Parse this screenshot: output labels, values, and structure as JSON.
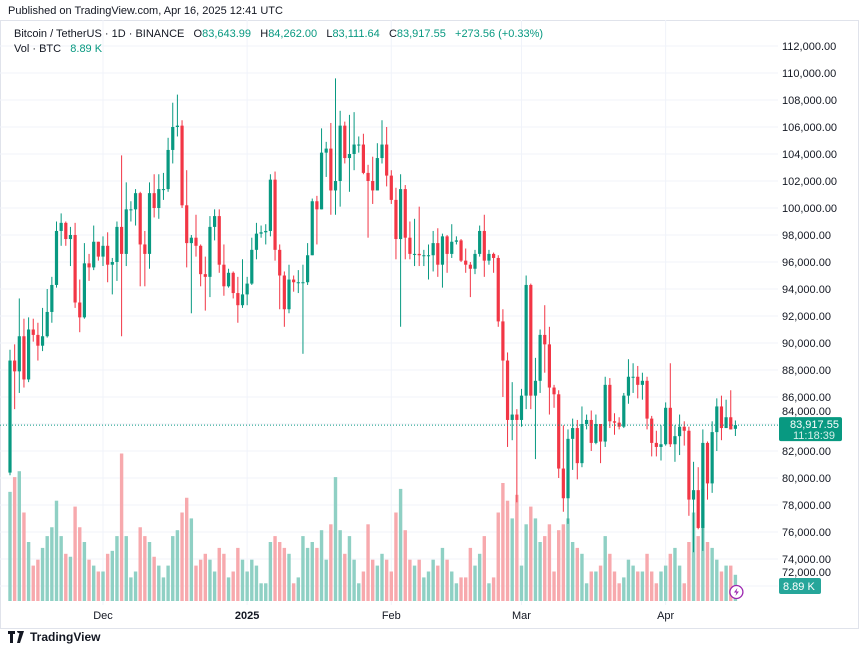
{
  "published": "Published on TradingView.com, Apr 16, 2025 12:41 UTC",
  "legend": {
    "symbol": "Bitcoin / TetherUS · 1D · BINANCE",
    "o_label": "O",
    "o": "83,643.99",
    "h_label": "H",
    "h": "84,262.00",
    "l_label": "L",
    "l": "83,111.64",
    "c_label": "C",
    "c": "83,917.55",
    "change": "+273.56 (+0.33%)",
    "vol_label": "Vol · BTC",
    "vol": "8.89 K"
  },
  "footer": {
    "brand": "TradingView",
    "logo_icon": "tradingview-logo-icon"
  },
  "chart_data": {
    "type": "candlestick",
    "colors": {
      "up": "#089981",
      "down": "#F23645",
      "up_volume": "#8fd0c4",
      "down_volume": "#f7a9ad",
      "last_price": "#089981",
      "bolt": "#9c27b0"
    },
    "y_ticks": [
      "112,000.00",
      "110,000.00",
      "108,000.00",
      "106,000.00",
      "104,000.00",
      "102,000.00",
      "100,000.00",
      "98,000.00",
      "96,000.00",
      "94,000.00",
      "92,000.00",
      "90,000.00",
      "88,000.00",
      "86,000.00",
      "84,000.00",
      "82,000.00",
      "80,000.00",
      "78,000.00",
      "76,000.00",
      "74,000.00",
      "72,000.00"
    ],
    "ylim": [
      71000,
      113000
    ],
    "x_ticks": [
      {
        "label": "Dec",
        "date": "2024-12-01"
      },
      {
        "label": "2025",
        "date": "2025-01-01"
      },
      {
        "label": "Feb",
        "date": "2025-02-01"
      },
      {
        "label": "Mar",
        "date": "2025-03-01"
      },
      {
        "label": "Apr",
        "date": "2025-04-01"
      }
    ],
    "last_price": {
      "value": 83917.55,
      "label": "83,917.55",
      "countdown": "11:18:39"
    },
    "last_volume_label": "8.89 K",
    "volume_unit": "K BTC",
    "columns": [
      "date",
      "open",
      "high",
      "low",
      "close",
      "volume"
    ],
    "candles": [
      [
        "2024-11-11",
        80400,
        89500,
        80200,
        88700,
        37
      ],
      [
        "2024-11-12",
        88700,
        89900,
        85100,
        87900,
        42
      ],
      [
        "2024-11-13",
        87900,
        93300,
        86300,
        90500,
        44
      ],
      [
        "2024-11-14",
        90500,
        91800,
        86700,
        87300,
        30
      ],
      [
        "2024-11-15",
        87300,
        91900,
        87100,
        91000,
        20
      ],
      [
        "2024-11-16",
        91000,
        91800,
        90100,
        90600,
        12
      ],
      [
        "2024-11-17",
        90600,
        91500,
        88700,
        89800,
        14
      ],
      [
        "2024-11-18",
        89800,
        92600,
        89400,
        90500,
        18
      ],
      [
        "2024-11-19",
        90500,
        94000,
        90400,
        92300,
        22
      ],
      [
        "2024-11-20",
        92300,
        94900,
        91500,
        94300,
        25
      ],
      [
        "2024-11-21",
        94300,
        99000,
        94100,
        98300,
        34
      ],
      [
        "2024-11-22",
        98300,
        99600,
        97200,
        98900,
        22
      ],
      [
        "2024-11-23",
        98900,
        99000,
        97200,
        97700,
        16
      ],
      [
        "2024-11-24",
        97700,
        98600,
        95700,
        98000,
        15
      ],
      [
        "2024-11-25",
        98000,
        98900,
        92600,
        93000,
        32
      ],
      [
        "2024-11-26",
        93000,
        94700,
        90800,
        91900,
        25
      ],
      [
        "2024-11-27",
        91900,
        97400,
        91800,
        95900,
        20
      ],
      [
        "2024-11-28",
        95900,
        96600,
        94600,
        95600,
        14
      ],
      [
        "2024-11-29",
        95600,
        98700,
        95400,
        97500,
        12
      ],
      [
        "2024-11-30",
        97500,
        97500,
        96100,
        96400,
        10
      ],
      [
        "2024-12-01",
        96400,
        97900,
        95700,
        97200,
        10
      ],
      [
        "2024-12-02",
        97200,
        98200,
        94500,
        95800,
        16
      ],
      [
        "2024-12-03",
        95800,
        96300,
        93600,
        96000,
        17
      ],
      [
        "2024-12-04",
        96000,
        99000,
        94600,
        98600,
        22
      ],
      [
        "2024-12-05",
        98600,
        103900,
        90500,
        96600,
        50
      ],
      [
        "2024-12-06",
        96600,
        101900,
        95700,
        99900,
        22
      ],
      [
        "2024-12-07",
        99900,
        100500,
        99000,
        99900,
        8
      ],
      [
        "2024-12-08",
        99900,
        101400,
        98700,
        101100,
        10
      ],
      [
        "2024-12-09",
        101100,
        101200,
        94200,
        97300,
        25
      ],
      [
        "2024-12-10",
        97300,
        98300,
        94200,
        96600,
        22
      ],
      [
        "2024-12-11",
        96600,
        101900,
        95500,
        101100,
        20
      ],
      [
        "2024-12-12",
        101100,
        102500,
        99300,
        100000,
        15
      ],
      [
        "2024-12-13",
        100000,
        102500,
        99200,
        101400,
        12
      ],
      [
        "2024-12-14",
        101400,
        102600,
        100600,
        101400,
        8
      ],
      [
        "2024-12-15",
        101400,
        105200,
        101200,
        104300,
        12
      ],
      [
        "2024-12-16",
        104300,
        107800,
        103300,
        106000,
        22
      ],
      [
        "2024-12-17",
        106000,
        108400,
        105300,
        106100,
        24
      ],
      [
        "2024-12-18",
        106100,
        106500,
        100000,
        100200,
        30
      ],
      [
        "2024-12-19",
        100200,
        102800,
        95600,
        97400,
        35
      ],
      [
        "2024-12-20",
        97400,
        98000,
        92200,
        97800,
        28
      ],
      [
        "2024-12-21",
        97800,
        99500,
        96400,
        97200,
        12
      ],
      [
        "2024-12-22",
        97200,
        97300,
        94200,
        95100,
        14
      ],
      [
        "2024-12-23",
        95100,
        96400,
        92400,
        94900,
        16
      ],
      [
        "2024-12-24",
        94900,
        99400,
        93400,
        98600,
        14
      ],
      [
        "2024-12-25",
        98600,
        99900,
        97600,
        99400,
        10
      ],
      [
        "2024-12-26",
        99400,
        99900,
        95200,
        95800,
        18
      ],
      [
        "2024-12-27",
        95800,
        97300,
        93500,
        94200,
        16
      ],
      [
        "2024-12-28",
        94200,
        95500,
        94100,
        95200,
        8
      ],
      [
        "2024-12-29",
        95200,
        95300,
        93300,
        93700,
        10
      ],
      [
        "2024-12-30",
        93700,
        94900,
        91500,
        92800,
        18
      ],
      [
        "2024-12-31",
        92800,
        96200,
        92600,
        93600,
        14
      ],
      [
        "2025-01-01",
        93600,
        94900,
        92800,
        94400,
        10
      ],
      [
        "2025-01-02",
        94400,
        97800,
        94300,
        96900,
        14
      ],
      [
        "2025-01-03",
        96900,
        98900,
        96200,
        98100,
        12
      ],
      [
        "2025-01-04",
        98100,
        98700,
        97800,
        98200,
        6
      ],
      [
        "2025-01-05",
        98200,
        98800,
        97300,
        98300,
        6
      ],
      [
        "2025-01-06",
        98300,
        102500,
        97900,
        102100,
        20
      ],
      [
        "2025-01-07",
        102100,
        102700,
        96100,
        96900,
        22
      ],
      [
        "2025-01-08",
        96900,
        97300,
        92500,
        95000,
        20
      ],
      [
        "2025-01-09",
        95000,
        95300,
        91200,
        92500,
        18
      ],
      [
        "2025-01-10",
        92500,
        95800,
        92200,
        94700,
        16
      ],
      [
        "2025-01-11",
        94700,
        95000,
        93800,
        94500,
        6
      ],
      [
        "2025-01-12",
        94500,
        95400,
        93700,
        94500,
        8
      ],
      [
        "2025-01-13",
        94500,
        95800,
        89200,
        94500,
        22
      ],
      [
        "2025-01-14",
        94500,
        97400,
        94300,
        96500,
        18
      ],
      [
        "2025-01-15",
        96500,
        100700,
        96500,
        100500,
        20
      ],
      [
        "2025-01-16",
        100500,
        100900,
        97300,
        99900,
        18
      ],
      [
        "2025-01-17",
        99900,
        105900,
        99900,
        104100,
        24
      ],
      [
        "2025-01-18",
        104100,
        104900,
        102300,
        104400,
        14
      ],
      [
        "2025-01-19",
        104400,
        106300,
        99500,
        101300,
        26
      ],
      [
        "2025-01-20",
        101300,
        109600,
        99500,
        102000,
        42
      ],
      [
        "2025-01-21",
        102000,
        107200,
        100100,
        106100,
        24
      ],
      [
        "2025-01-22",
        106100,
        106400,
        103300,
        103700,
        16
      ],
      [
        "2025-01-23",
        103700,
        106900,
        101200,
        104000,
        22
      ],
      [
        "2025-01-24",
        104000,
        107100,
        102800,
        104700,
        14
      ],
      [
        "2025-01-25",
        104700,
        105300,
        104100,
        104700,
        6
      ],
      [
        "2025-01-26",
        104700,
        105500,
        102500,
        102600,
        10
      ],
      [
        "2025-01-27",
        102600,
        103200,
        97800,
        102000,
        26
      ],
      [
        "2025-01-28",
        102000,
        103800,
        100300,
        101300,
        14
      ],
      [
        "2025-01-29",
        101300,
        104800,
        101300,
        103700,
        12
      ],
      [
        "2025-01-30",
        103700,
        106500,
        103300,
        104700,
        16
      ],
      [
        "2025-01-31",
        104700,
        106000,
        101600,
        102400,
        14
      ],
      [
        "2025-02-01",
        102400,
        102800,
        100300,
        100600,
        10
      ],
      [
        "2025-02-02",
        100600,
        101500,
        96200,
        97700,
        30
      ],
      [
        "2025-02-03",
        97700,
        102500,
        91200,
        101400,
        38
      ],
      [
        "2025-02-04",
        101400,
        101700,
        96200,
        97800,
        24
      ],
      [
        "2025-02-05",
        97800,
        99000,
        96200,
        96600,
        14
      ],
      [
        "2025-02-06",
        96600,
        99200,
        95700,
        96600,
        12
      ],
      [
        "2025-02-07",
        96600,
        100100,
        95700,
        96500,
        14
      ],
      [
        "2025-02-08",
        96500,
        96900,
        95700,
        96500,
        8
      ],
      [
        "2025-02-09",
        96500,
        97300,
        94700,
        96500,
        10
      ],
      [
        "2025-02-10",
        96500,
        98300,
        95300,
        97400,
        14
      ],
      [
        "2025-02-11",
        97400,
        98500,
        94900,
        95800,
        12
      ],
      [
        "2025-02-12",
        95800,
        98100,
        94100,
        97900,
        18
      ],
      [
        "2025-02-13",
        97900,
        98000,
        95200,
        96600,
        14
      ],
      [
        "2025-02-14",
        96600,
        98800,
        96300,
        97500,
        10
      ],
      [
        "2025-02-15",
        97500,
        97900,
        97300,
        97600,
        6
      ],
      [
        "2025-02-16",
        97600,
        97700,
        96000,
        96100,
        8
      ],
      [
        "2025-02-17",
        96100,
        97000,
        95200,
        95800,
        8
      ],
      [
        "2025-02-18",
        95800,
        96000,
        93400,
        95500,
        18
      ],
      [
        "2025-02-19",
        95500,
        96900,
        95100,
        96600,
        12
      ],
      [
        "2025-02-20",
        96600,
        98700,
        96400,
        98300,
        16
      ],
      [
        "2025-02-21",
        98300,
        99500,
        94900,
        96100,
        22
      ],
      [
        "2025-02-22",
        96100,
        96900,
        95800,
        96600,
        6
      ],
      [
        "2025-02-23",
        96600,
        96700,
        95200,
        96300,
        8
      ],
      [
        "2025-02-24",
        96300,
        96500,
        91200,
        91600,
        30
      ],
      [
        "2025-02-25",
        91600,
        92500,
        86000,
        88700,
        40
      ],
      [
        "2025-02-26",
        88700,
        89300,
        82300,
        84300,
        34
      ],
      [
        "2025-02-27",
        84300,
        87100,
        82800,
        84700,
        28
      ],
      [
        "2025-02-28",
        84700,
        85100,
        78200,
        84300,
        36
      ],
      [
        "2025-03-01",
        84300,
        86600,
        83800,
        86100,
        12
      ],
      [
        "2025-03-02",
        86100,
        95000,
        85100,
        94300,
        26
      ],
      [
        "2025-03-03",
        94300,
        94400,
        85100,
        86100,
        32
      ],
      [
        "2025-03-04",
        86100,
        88900,
        81400,
        87200,
        28
      ],
      [
        "2025-03-05",
        87200,
        91000,
        86300,
        90600,
        20
      ],
      [
        "2025-03-06",
        90600,
        92800,
        87800,
        89900,
        22
      ],
      [
        "2025-03-07",
        89900,
        91200,
        84700,
        86700,
        26
      ],
      [
        "2025-03-08",
        86700,
        86900,
        85200,
        86200,
        10
      ],
      [
        "2025-03-09",
        86200,
        86500,
        80000,
        80700,
        24
      ],
      [
        "2025-03-10",
        80700,
        83900,
        77500,
        78500,
        26
      ],
      [
        "2025-03-11",
        78500,
        83600,
        76600,
        82900,
        28
      ],
      [
        "2025-03-12",
        82900,
        84400,
        80600,
        83700,
        20
      ],
      [
        "2025-03-13",
        83700,
        84300,
        79900,
        81100,
        18
      ],
      [
        "2025-03-14",
        81100,
        85300,
        80800,
        84000,
        16
      ],
      [
        "2025-03-15",
        84000,
        84700,
        83600,
        84300,
        6
      ],
      [
        "2025-03-16",
        84300,
        85000,
        82000,
        82600,
        10
      ],
      [
        "2025-03-17",
        82600,
        84700,
        82500,
        84000,
        10
      ],
      [
        "2025-03-18",
        84000,
        84000,
        81100,
        82700,
        12
      ],
      [
        "2025-03-19",
        82700,
        87500,
        82300,
        86900,
        22
      ],
      [
        "2025-03-20",
        86900,
        87400,
        83700,
        84200,
        16
      ],
      [
        "2025-03-21",
        84200,
        84800,
        83200,
        84100,
        10
      ],
      [
        "2025-03-22",
        84100,
        84500,
        83600,
        83800,
        6
      ],
      [
        "2025-03-23",
        83800,
        86300,
        83700,
        86100,
        8
      ],
      [
        "2025-03-24",
        86100,
        88800,
        85500,
        87500,
        14
      ],
      [
        "2025-03-25",
        87500,
        88500,
        86300,
        87500,
        12
      ],
      [
        "2025-03-26",
        87500,
        88300,
        85900,
        86900,
        10
      ],
      [
        "2025-03-27",
        86900,
        87800,
        85800,
        87200,
        10
      ],
      [
        "2025-03-28",
        87200,
        87500,
        83600,
        84400,
        16
      ],
      [
        "2025-03-29",
        84400,
        84600,
        81600,
        82600,
        10
      ],
      [
        "2025-03-30",
        82600,
        83500,
        81600,
        82300,
        6
      ],
      [
        "2025-03-31",
        82300,
        83900,
        81300,
        82500,
        10
      ],
      [
        "2025-04-01",
        82500,
        85600,
        82400,
        85200,
        12
      ],
      [
        "2025-04-02",
        85200,
        88500,
        82300,
        82500,
        16
      ],
      [
        "2025-04-03",
        82500,
        83900,
        81200,
        83100,
        18
      ],
      [
        "2025-04-04",
        83100,
        84700,
        81700,
        83800,
        12
      ],
      [
        "2025-04-05",
        83800,
        84200,
        82400,
        83500,
        6
      ],
      [
        "2025-04-06",
        83500,
        83800,
        77200,
        78400,
        20
      ],
      [
        "2025-04-07",
        78400,
        81200,
        74500,
        79100,
        30
      ],
      [
        "2025-04-08",
        79100,
        80800,
        76200,
        76300,
        22
      ],
      [
        "2025-04-09",
        76300,
        83600,
        74600,
        82600,
        38
      ],
      [
        "2025-04-10",
        82600,
        82700,
        78400,
        79600,
        20
      ],
      [
        "2025-04-11",
        79600,
        84200,
        78900,
        83400,
        18
      ],
      [
        "2025-04-12",
        83400,
        85900,
        82000,
        85300,
        14
      ],
      [
        "2025-04-13",
        85300,
        86100,
        82800,
        83700,
        10
      ],
      [
        "2025-04-14",
        83700,
        85800,
        83700,
        84500,
        12
      ],
      [
        "2025-04-15",
        84500,
        86500,
        83600,
        83600,
        12
      ],
      [
        "2025-04-16",
        83643.99,
        84262,
        83111.64,
        83917.55,
        8.89
      ]
    ]
  }
}
